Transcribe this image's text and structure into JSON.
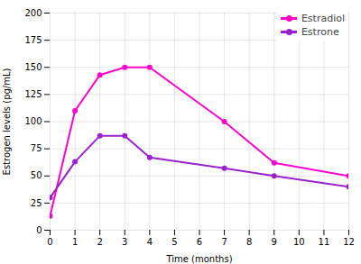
{
  "chart_data": {
    "type": "line",
    "x": [
      0,
      1,
      2,
      3,
      4,
      7,
      9,
      12
    ],
    "series": [
      {
        "name": "Estradiol",
        "color": "#FF00CC",
        "values": [
          13,
          110,
          143,
          150,
          150,
          100,
          62,
          50
        ]
      },
      {
        "name": "Estrone",
        "color": "#9922CC",
        "values": [
          30,
          63,
          87,
          87,
          67,
          57,
          50,
          40
        ]
      }
    ],
    "marker": "circle",
    "xlabel": "Time (months)",
    "ylabel": "Estrogen levels (pg/mL)",
    "xlim": [
      0,
      12
    ],
    "ylim": [
      0,
      200
    ],
    "xticks": [
      0,
      1,
      2,
      3,
      4,
      5,
      6,
      7,
      8,
      9,
      10,
      11,
      12
    ],
    "yticks": [
      0,
      25,
      50,
      75,
      100,
      125,
      150,
      175,
      200
    ],
    "grid": true,
    "legend": "upper right"
  }
}
